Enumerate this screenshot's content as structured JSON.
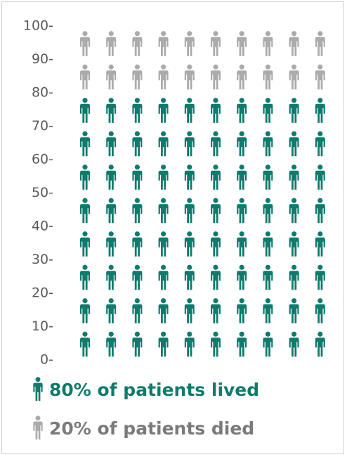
{
  "chart_data": {
    "type": "pictograph",
    "title": "",
    "xlabel": "",
    "ylabel": "",
    "ylim": [
      0,
      100
    ],
    "yticks": [
      "0-",
      "10-",
      "20-",
      "30-",
      "40-",
      "50-",
      "60-",
      "70-",
      "80-",
      "90-",
      "100-"
    ],
    "grid": false,
    "icon": "person-icon",
    "columns": 10,
    "total": 100,
    "series": [
      {
        "name": "lived",
        "value": 80,
        "color": "#0f7b6c"
      },
      {
        "name": "died",
        "value": 20,
        "color": "#ababab"
      }
    ]
  },
  "legend": {
    "lived_label": "80% of patients lived",
    "died_label": "20% of patients died",
    "lived_color": "#0f7b6c",
    "died_color": "#7a7a7a"
  }
}
